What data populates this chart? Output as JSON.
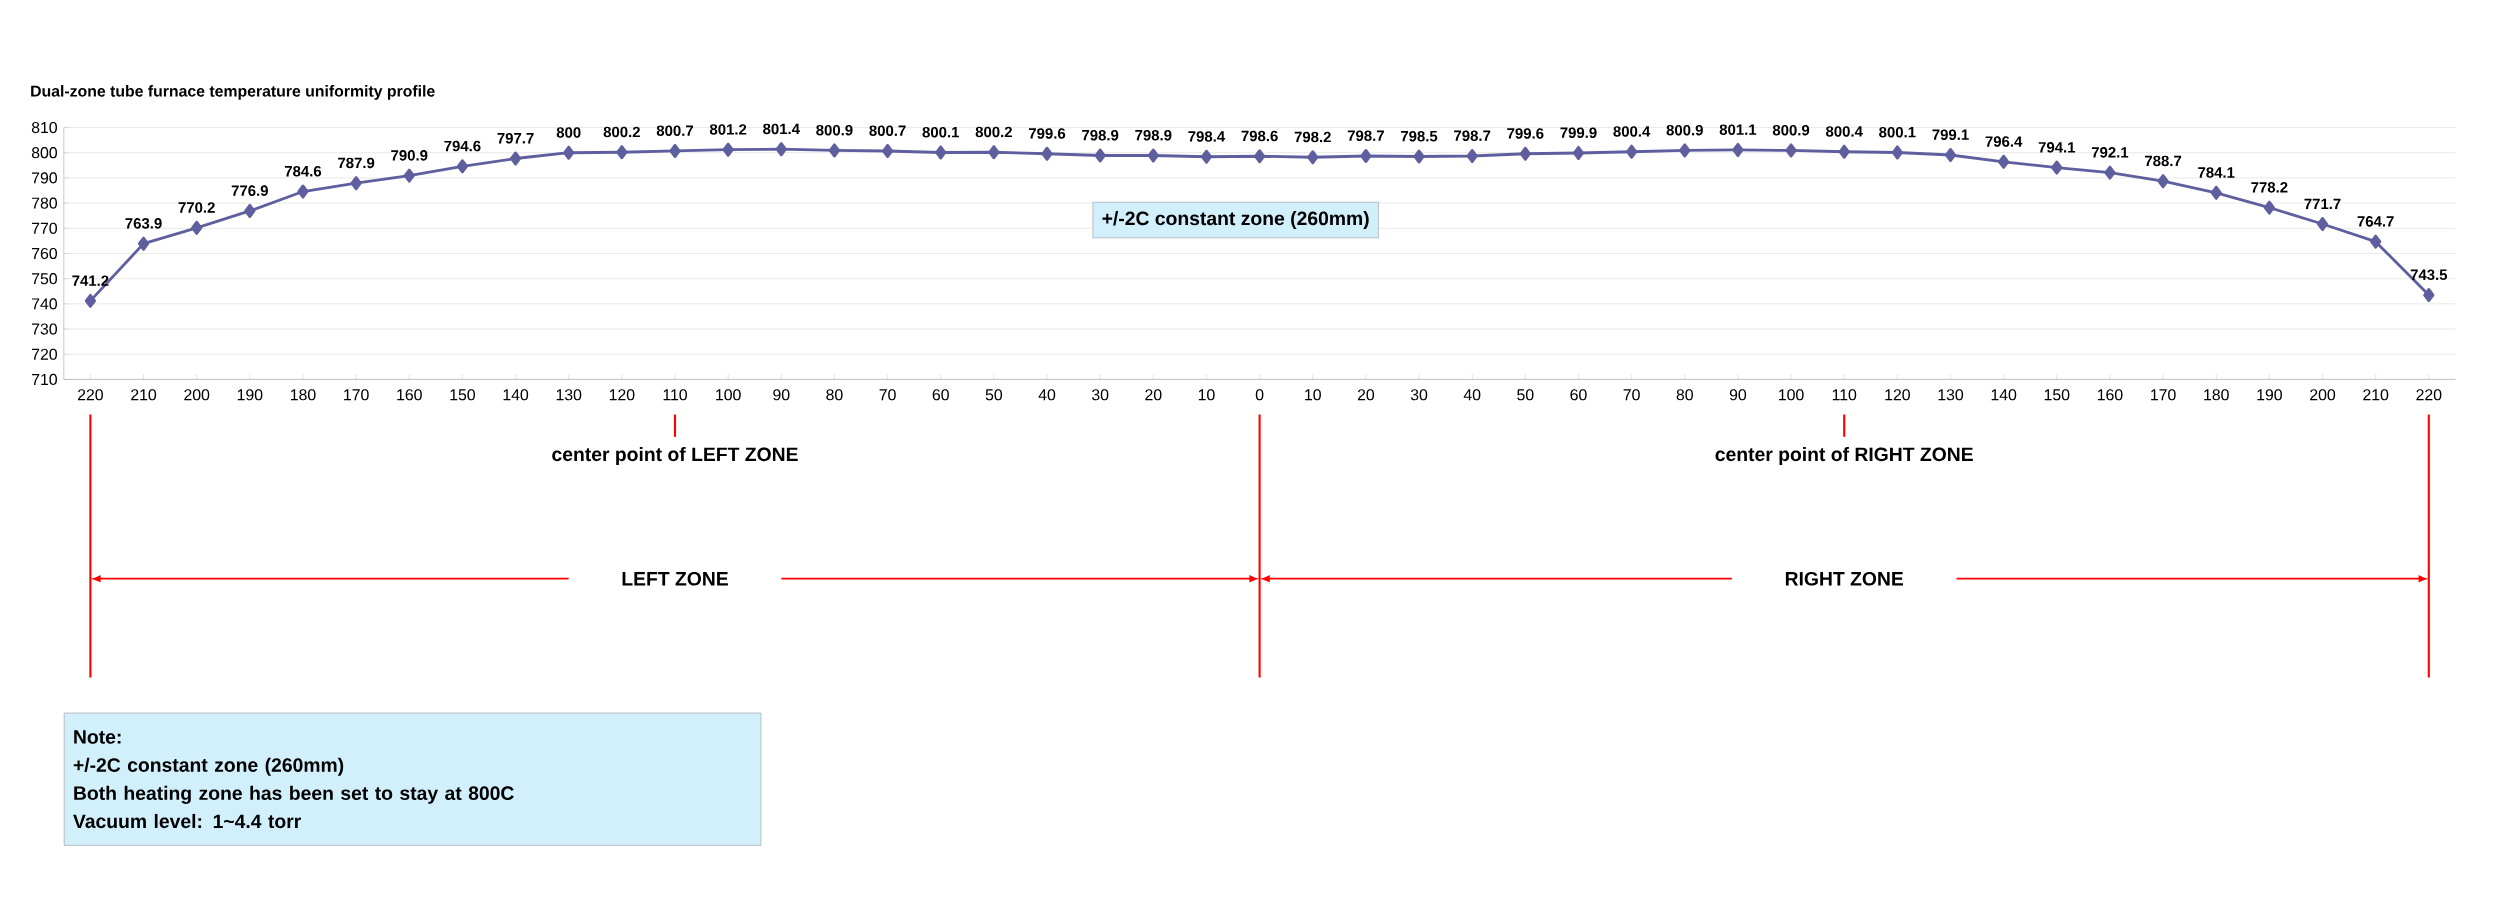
{
  "chart_data": {
    "type": "line",
    "title": "Dual-zone tube furnace temperature uniformity profile",
    "categories": [
      "220",
      "210",
      "200",
      "190",
      "180",
      "170",
      "160",
      "150",
      "140",
      "130",
      "120",
      "110",
      "100",
      "90",
      "80",
      "70",
      "60",
      "50",
      "40",
      "30",
      "20",
      "10",
      "0",
      "10",
      "20",
      "30",
      "40",
      "50",
      "60",
      "70",
      "80",
      "90",
      "100",
      "110",
      "120",
      "130",
      "140",
      "150",
      "160",
      "170",
      "180",
      "190",
      "200",
      "210",
      "220"
    ],
    "values": [
      741.2,
      763.9,
      770.2,
      776.9,
      784.6,
      787.9,
      790.9,
      794.6,
      797.7,
      800,
      800.2,
      800.7,
      801.2,
      801.4,
      800.9,
      800.7,
      800.1,
      800.2,
      799.6,
      798.9,
      798.9,
      798.4,
      798.6,
      798.2,
      798.7,
      798.5,
      798.7,
      799.6,
      799.9,
      800.4,
      800.9,
      801.1,
      800.9,
      800.4,
      800.1,
      799.1,
      796.4,
      794.1,
      792.1,
      788.7,
      784.1,
      778.2,
      771.7,
      764.7,
      743.5
    ],
    "color": "#5f5f9f",
    "marker": "diamond",
    "data_labels": true,
    "grid": "y",
    "ylim": [
      710,
      810
    ],
    "yticks": [
      710,
      720,
      730,
      740,
      750,
      760,
      770,
      780,
      790,
      800,
      810
    ],
    "annotations": [
      "+/-2C constant zone (260mm)",
      "center point of LEFT ZONE",
      "center point of RIGHT ZONE",
      "LEFT ZONE",
      "RIGHT ZONE",
      "Note:",
      "+/-2C constant zone (260mm)",
      "Both heating zone has been set to stay at 800C",
      "Vacuum level: 1~4.4 torr"
    ]
  }
}
